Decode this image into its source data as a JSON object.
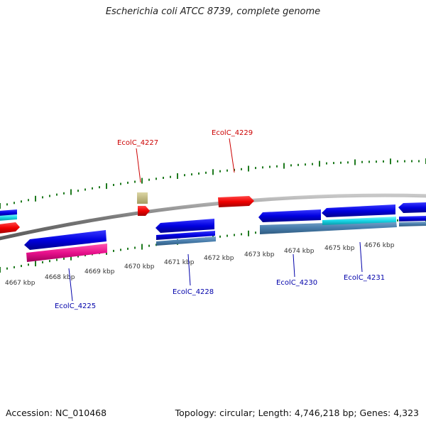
{
  "title": "Escherichia coli ATCC 8739, complete genome",
  "footer": {
    "accession": "Accession: NC_010468",
    "stats": "Topology: circular; Length: 4,746,218 bp; Genes: 4,323"
  },
  "colors": {
    "forward_label": "#cc0000",
    "reverse_label": "#0000aa",
    "tick": "#1f7a1f",
    "backbone": "#8c8c8c"
  },
  "kbp_labels": [
    "4667 kbp",
    "4668 kbp",
    "4669 kbp",
    "4670 kbp",
    "4671 kbp",
    "4672 kbp",
    "4673 kbp",
    "4674 kbp",
    "4675 kbp",
    "4676 kbp"
  ],
  "gene_labels": {
    "forward": [
      "EcolC_4227",
      "EcolC_4229"
    ],
    "reverse": [
      "EcolC_4225",
      "EcolC_4228",
      "EcolC_4230",
      "EcolC_4231"
    ]
  }
}
